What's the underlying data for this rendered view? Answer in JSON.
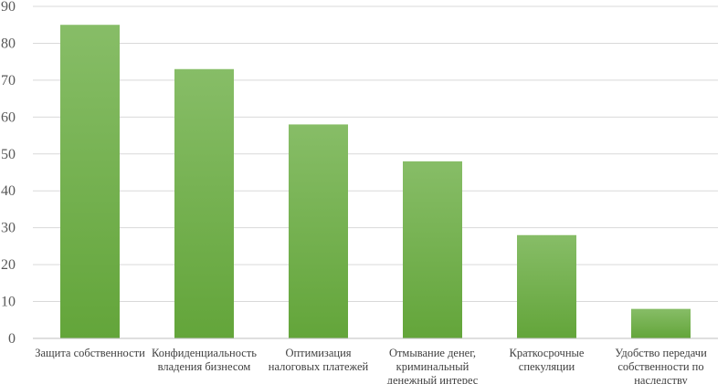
{
  "chart_data": {
    "type": "bar",
    "title": "",
    "xlabel": "",
    "ylabel": "",
    "categories": [
      "Защита собственности",
      "Конфиденциальность владения бизнесом",
      "Оптимизация налоговых платежей",
      "Отмывание денег, криминальный денежный интерес",
      "Краткосрочные спекуляции",
      "Удобство передачи собственности по наследству"
    ],
    "category_lines": [
      [
        "Защита собственности"
      ],
      [
        "Конфиденциальность",
        "владения бизнесом"
      ],
      [
        "Оптимизация",
        "налоговых платежей"
      ],
      [
        "Отмывание денег,",
        "криминальный",
        "денежный интерес"
      ],
      [
        "Краткосрочные",
        "спекуляции"
      ],
      [
        "Удобство передачи",
        "собственности по",
        "наследству"
      ]
    ],
    "values": [
      85,
      73,
      58,
      48,
      28,
      8
    ],
    "ylim": [
      0,
      90
    ],
    "yticks": [
      0,
      10,
      20,
      30,
      40,
      50,
      60,
      70,
      80,
      90
    ],
    "grid": true,
    "legend": "none",
    "bar_color_top": "#87bd67",
    "bar_color_bottom": "#63a53a",
    "grid_color": "#d9d9d9"
  }
}
